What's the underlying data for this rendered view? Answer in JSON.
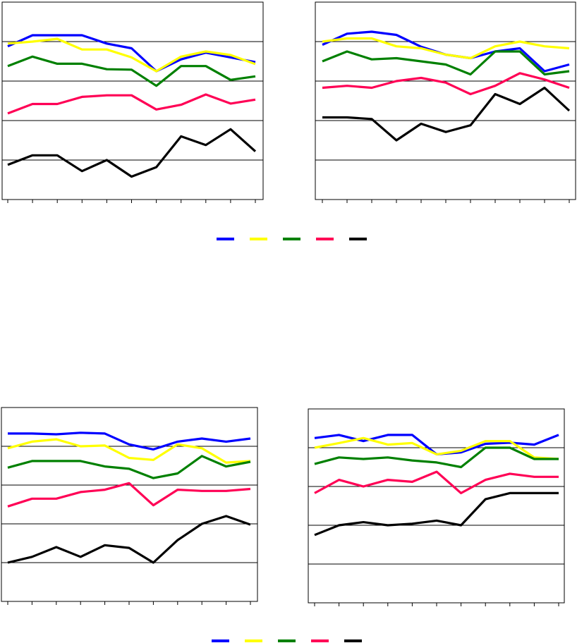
{
  "colors": {
    "frame": "#000000",
    "grid": "#000000",
    "series": [
      "#0000ff",
      "#ffff00",
      "#008000",
      "#ff0055",
      "#000000"
    ]
  },
  "chart_data": [
    {
      "type": "line",
      "x": [
        1,
        2,
        3,
        4,
        5,
        6,
        7,
        8,
        9,
        10,
        11
      ],
      "ylim": [
        0,
        5
      ],
      "grid": true,
      "series": [
        {
          "values": [
            3.88,
            4.16,
            4.16,
            4.16,
            3.95,
            3.83,
            3.25,
            3.55,
            3.72,
            3.6,
            3.48
          ]
        },
        {
          "values": [
            3.95,
            4.0,
            4.07,
            3.8,
            3.8,
            3.6,
            3.25,
            3.62,
            3.75,
            3.66,
            3.43
          ]
        },
        {
          "values": [
            3.38,
            3.62,
            3.44,
            3.44,
            3.3,
            3.29,
            2.88,
            3.38,
            3.38,
            3.03,
            3.12
          ]
        },
        {
          "values": [
            2.18,
            2.42,
            2.42,
            2.6,
            2.64,
            2.64,
            2.28,
            2.4,
            2.66,
            2.43,
            2.53
          ]
        },
        {
          "values": [
            0.88,
            1.12,
            1.12,
            0.72,
            1.0,
            0.58,
            0.82,
            1.6,
            1.38,
            1.78,
            1.22
          ]
        }
      ]
    },
    {
      "type": "line",
      "x": [
        1,
        2,
        3,
        4,
        5,
        6,
        7,
        8,
        9,
        10,
        11
      ],
      "ylim": [
        0,
        5
      ],
      "grid": true,
      "series": [
        {
          "values": [
            3.92,
            4.2,
            4.25,
            4.17,
            3.87,
            3.67,
            3.58,
            3.75,
            3.83,
            3.25,
            3.42
          ]
        },
        {
          "values": [
            4.0,
            4.08,
            4.08,
            3.88,
            3.83,
            3.67,
            3.58,
            3.88,
            4.0,
            3.88,
            3.83
          ]
        },
        {
          "values": [
            3.5,
            3.75,
            3.55,
            3.58,
            3.5,
            3.42,
            3.17,
            3.75,
            3.75,
            3.17,
            3.25
          ]
        },
        {
          "values": [
            2.83,
            2.88,
            2.83,
            3.0,
            3.08,
            2.96,
            2.67,
            2.88,
            3.2,
            3.04,
            2.83
          ]
        },
        {
          "values": [
            2.08,
            2.08,
            2.04,
            1.5,
            1.92,
            1.71,
            1.88,
            2.67,
            2.42,
            2.83,
            2.25
          ]
        }
      ]
    },
    {
      "type": "line",
      "x": [
        1,
        2,
        3,
        4,
        5,
        6,
        7,
        8,
        9,
        10,
        11
      ],
      "ylim": [
        0,
        5
      ],
      "grid": true,
      "series": [
        {
          "values": [
            4.33,
            4.33,
            4.31,
            4.35,
            4.33,
            4.05,
            3.92,
            4.12,
            4.2,
            4.12,
            4.2
          ]
        },
        {
          "values": [
            3.95,
            4.12,
            4.18,
            4.0,
            4.02,
            3.7,
            3.65,
            4.05,
            3.95,
            3.58,
            3.62
          ]
        },
        {
          "values": [
            3.45,
            3.62,
            3.62,
            3.62,
            3.48,
            3.42,
            3.18,
            3.3,
            3.75,
            3.48,
            3.6
          ]
        },
        {
          "values": [
            2.45,
            2.65,
            2.65,
            2.82,
            2.88,
            3.05,
            2.48,
            2.88,
            2.85,
            2.85,
            2.9
          ]
        },
        {
          "values": [
            1.0,
            1.15,
            1.4,
            1.15,
            1.45,
            1.38,
            1.0,
            1.58,
            2.0,
            2.2,
            1.98
          ]
        }
      ]
    },
    {
      "type": "line",
      "x": [
        1,
        2,
        3,
        4,
        5,
        6,
        7,
        8,
        9,
        10,
        11
      ],
      "ylim": [
        0,
        5
      ],
      "grid": true,
      "series": [
        {
          "values": [
            4.25,
            4.33,
            4.17,
            4.33,
            4.33,
            3.83,
            3.88,
            4.1,
            4.13,
            4.08,
            4.33
          ]
        },
        {
          "values": [
            4.0,
            4.12,
            4.25,
            4.08,
            4.12,
            3.83,
            3.92,
            4.17,
            4.17,
            3.75,
            3.71
          ]
        },
        {
          "values": [
            3.58,
            3.75,
            3.71,
            3.75,
            3.67,
            3.62,
            3.5,
            4.0,
            4.0,
            3.71,
            3.71
          ]
        },
        {
          "values": [
            2.83,
            3.17,
            3.0,
            3.17,
            3.12,
            3.38,
            2.83,
            3.17,
            3.33,
            3.25,
            3.25
          ]
        },
        {
          "values": [
            1.75,
            2.0,
            2.08,
            2.0,
            2.04,
            2.12,
            2.0,
            2.67,
            2.83,
            2.83,
            2.83
          ]
        }
      ]
    }
  ]
}
